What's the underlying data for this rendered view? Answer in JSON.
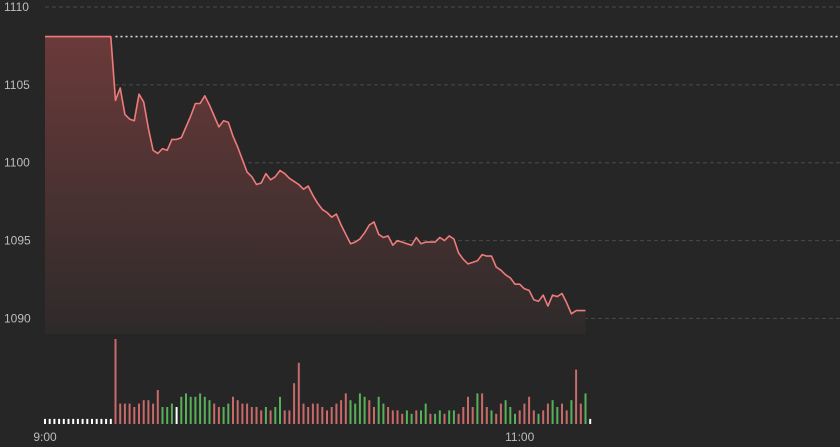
{
  "theme": {
    "background": "#262626",
    "grid": "#4a4a4a",
    "axis_text": "#bdbdbd",
    "price_line": "#ef7b7b",
    "area_top": "#6b3a3a",
    "area_bottom": "#2e2a2a",
    "ref_line": "#d9d9d9",
    "vol_up": "#58b058",
    "vol_down": "#c96a6a",
    "vol_flat": "#ffffff"
  },
  "chart_data": {
    "type": "line",
    "title": "",
    "xlabel": "",
    "ylabel": "",
    "grid": true,
    "ylim": [
      1089,
      1110
    ],
    "y_ticks": [
      1090,
      1095,
      1100,
      1105,
      1110
    ],
    "x_ticks": [
      {
        "label": "9:00",
        "index": 0
      },
      {
        "label": "11:00",
        "index": 101
      }
    ],
    "reference_price": 1108.1,
    "price": [
      1108.1,
      1108.1,
      1108.1,
      1108.1,
      1108.1,
      1108.1,
      1108.1,
      1108.1,
      1108.1,
      1108.1,
      1108.1,
      1108.1,
      1108.1,
      1108.1,
      1108.1,
      1104.0,
      1104.8,
      1103.1,
      1102.8,
      1102.7,
      1104.4,
      1103.9,
      1102.2,
      1100.8,
      1100.6,
      1100.9,
      1100.8,
      1101.5,
      1101.5,
      1101.6,
      1102.3,
      1103.0,
      1103.8,
      1103.8,
      1104.3,
      1103.7,
      1103.0,
      1102.3,
      1102.7,
      1102.6,
      1101.7,
      1101.0,
      1100.2,
      1099.4,
      1099.1,
      1098.6,
      1098.7,
      1099.3,
      1098.9,
      1099.1,
      1099.5,
      1099.3,
      1099.0,
      1098.8,
      1098.6,
      1098.3,
      1098.5,
      1097.9,
      1097.4,
      1097.0,
      1096.8,
      1096.5,
      1096.7,
      1096.0,
      1095.4,
      1094.8,
      1094.9,
      1095.1,
      1095.5,
      1096.0,
      1096.2,
      1095.4,
      1095.2,
      1095.3,
      1094.7,
      1095.0,
      1094.9,
      1094.8,
      1094.7,
      1095.2,
      1094.8,
      1094.9,
      1094.9,
      1094.9,
      1095.2,
      1095.0,
      1095.3,
      1095.1,
      1094.2,
      1093.8,
      1093.5,
      1093.6,
      1093.7,
      1094.1,
      1094.0,
      1094.0,
      1093.3,
      1093.1,
      1092.8,
      1092.6,
      1092.2,
      1092.2,
      1091.9,
      1091.8,
      1091.2,
      1091.1,
      1091.5,
      1090.8,
      1091.5,
      1091.4,
      1091.6,
      1091.0,
      1090.3,
      1090.5,
      1090.5,
      1090.5
    ],
    "volume": [
      {
        "v": 0.15,
        "d": "flat"
      },
      {
        "v": 0.15,
        "d": "flat"
      },
      {
        "v": 0.15,
        "d": "flat"
      },
      {
        "v": 0.15,
        "d": "flat"
      },
      {
        "v": 0.15,
        "d": "flat"
      },
      {
        "v": 0.15,
        "d": "flat"
      },
      {
        "v": 0.15,
        "d": "flat"
      },
      {
        "v": 0.15,
        "d": "flat"
      },
      {
        "v": 0.15,
        "d": "flat"
      },
      {
        "v": 0.15,
        "d": "flat"
      },
      {
        "v": 0.15,
        "d": "flat"
      },
      {
        "v": 0.15,
        "d": "flat"
      },
      {
        "v": 0.15,
        "d": "flat"
      },
      {
        "v": 0.15,
        "d": "flat"
      },
      {
        "v": 0.15,
        "d": "flat"
      },
      {
        "v": 2.5,
        "d": "down"
      },
      {
        "v": 0.6,
        "d": "down"
      },
      {
        "v": 0.6,
        "d": "down"
      },
      {
        "v": 0.6,
        "d": "down"
      },
      {
        "v": 0.5,
        "d": "down"
      },
      {
        "v": 0.6,
        "d": "down"
      },
      {
        "v": 0.7,
        "d": "down"
      },
      {
        "v": 0.7,
        "d": "down"
      },
      {
        "v": 0.6,
        "d": "down"
      },
      {
        "v": 1.0,
        "d": "down"
      },
      {
        "v": 0.5,
        "d": "up"
      },
      {
        "v": 0.5,
        "d": "up"
      },
      {
        "v": 0.6,
        "d": "up"
      },
      {
        "v": 0.5,
        "d": "flat"
      },
      {
        "v": 0.8,
        "d": "up"
      },
      {
        "v": 0.9,
        "d": "up"
      },
      {
        "v": 0.8,
        "d": "up"
      },
      {
        "v": 0.8,
        "d": "up"
      },
      {
        "v": 0.9,
        "d": "up"
      },
      {
        "v": 0.8,
        "d": "up"
      },
      {
        "v": 0.7,
        "d": "up"
      },
      {
        "v": 0.6,
        "d": "down"
      },
      {
        "v": 0.5,
        "d": "down"
      },
      {
        "v": 0.5,
        "d": "up"
      },
      {
        "v": 0.6,
        "d": "up"
      },
      {
        "v": 0.8,
        "d": "down"
      },
      {
        "v": 0.7,
        "d": "down"
      },
      {
        "v": 0.6,
        "d": "down"
      },
      {
        "v": 0.6,
        "d": "down"
      },
      {
        "v": 0.5,
        "d": "down"
      },
      {
        "v": 0.5,
        "d": "down"
      },
      {
        "v": 0.4,
        "d": "down"
      },
      {
        "v": 0.5,
        "d": "up"
      },
      {
        "v": 0.4,
        "d": "down"
      },
      {
        "v": 0.5,
        "d": "up"
      },
      {
        "v": 0.8,
        "d": "up"
      },
      {
        "v": 0.4,
        "d": "down"
      },
      {
        "v": 0.4,
        "d": "down"
      },
      {
        "v": 1.2,
        "d": "down"
      },
      {
        "v": 1.8,
        "d": "down"
      },
      {
        "v": 0.6,
        "d": "down"
      },
      {
        "v": 0.5,
        "d": "down"
      },
      {
        "v": 0.6,
        "d": "down"
      },
      {
        "v": 0.6,
        "d": "down"
      },
      {
        "v": 0.5,
        "d": "down"
      },
      {
        "v": 0.4,
        "d": "down"
      },
      {
        "v": 0.5,
        "d": "down"
      },
      {
        "v": 0.6,
        "d": "down"
      },
      {
        "v": 0.7,
        "d": "down"
      },
      {
        "v": 0.9,
        "d": "down"
      },
      {
        "v": 0.7,
        "d": "up"
      },
      {
        "v": 0.6,
        "d": "up"
      },
      {
        "v": 0.9,
        "d": "up"
      },
      {
        "v": 0.8,
        "d": "up"
      },
      {
        "v": 0.7,
        "d": "down"
      },
      {
        "v": 0.5,
        "d": "down"
      },
      {
        "v": 0.8,
        "d": "up"
      },
      {
        "v": 0.6,
        "d": "up"
      },
      {
        "v": 0.5,
        "d": "down"
      },
      {
        "v": 0.4,
        "d": "down"
      },
      {
        "v": 0.4,
        "d": "down"
      },
      {
        "v": 0.3,
        "d": "down"
      },
      {
        "v": 0.4,
        "d": "up"
      },
      {
        "v": 0.3,
        "d": "up"
      },
      {
        "v": 0.4,
        "d": "down"
      },
      {
        "v": 0.4,
        "d": "up"
      },
      {
        "v": 0.6,
        "d": "up"
      },
      {
        "v": 0.3,
        "d": "down"
      },
      {
        "v": 0.3,
        "d": "up"
      },
      {
        "v": 0.4,
        "d": "up"
      },
      {
        "v": 0.3,
        "d": "down"
      },
      {
        "v": 0.4,
        "d": "up"
      },
      {
        "v": 0.4,
        "d": "up"
      },
      {
        "v": 0.3,
        "d": "down"
      },
      {
        "v": 0.5,
        "d": "down"
      },
      {
        "v": 0.8,
        "d": "down"
      },
      {
        "v": 0.5,
        "d": "down"
      },
      {
        "v": 0.9,
        "d": "up"
      },
      {
        "v": 0.9,
        "d": "down"
      },
      {
        "v": 0.5,
        "d": "down"
      },
      {
        "v": 0.4,
        "d": "up"
      },
      {
        "v": 0.3,
        "d": "down"
      },
      {
        "v": 0.6,
        "d": "down"
      },
      {
        "v": 0.7,
        "d": "up"
      },
      {
        "v": 0.5,
        "d": "up"
      },
      {
        "v": 0.3,
        "d": "up"
      },
      {
        "v": 0.4,
        "d": "down"
      },
      {
        "v": 0.6,
        "d": "down"
      },
      {
        "v": 0.8,
        "d": "down"
      },
      {
        "v": 0.4,
        "d": "down"
      },
      {
        "v": 0.3,
        "d": "up"
      },
      {
        "v": 0.4,
        "d": "down"
      },
      {
        "v": 0.6,
        "d": "down"
      },
      {
        "v": 0.7,
        "d": "up"
      },
      {
        "v": 0.5,
        "d": "up"
      },
      {
        "v": 0.6,
        "d": "down"
      },
      {
        "v": 0.4,
        "d": "down"
      },
      {
        "v": 0.7,
        "d": "up"
      },
      {
        "v": 1.6,
        "d": "down"
      },
      {
        "v": 0.6,
        "d": "down"
      },
      {
        "v": 0.9,
        "d": "up"
      },
      {
        "v": 0.15,
        "d": "flat"
      }
    ]
  }
}
